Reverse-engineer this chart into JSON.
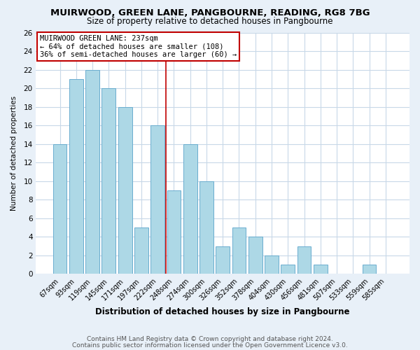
{
  "title": "MUIRWOOD, GREEN LANE, PANGBOURNE, READING, RG8 7BG",
  "subtitle": "Size of property relative to detached houses in Pangbourne",
  "xlabel": "Distribution of detached houses by size in Pangbourne",
  "ylabel": "Number of detached properties",
  "categories": [
    "67sqm",
    "93sqm",
    "119sqm",
    "145sqm",
    "171sqm",
    "197sqm",
    "222sqm",
    "248sqm",
    "274sqm",
    "300sqm",
    "326sqm",
    "352sqm",
    "378sqm",
    "404sqm",
    "430sqm",
    "456sqm",
    "481sqm",
    "507sqm",
    "533sqm",
    "559sqm",
    "585sqm"
  ],
  "values": [
    14,
    21,
    22,
    20,
    18,
    5,
    16,
    9,
    14,
    10,
    3,
    5,
    4,
    2,
    1,
    3,
    1,
    0,
    0,
    1,
    0
  ],
  "bar_color": "#add8e6",
  "bar_edge_color": "#6aadcf",
  "highlight_bar_index": 7,
  "highlight_line_color": "#c00000",
  "ylim": [
    0,
    26
  ],
  "yticks": [
    0,
    2,
    4,
    6,
    8,
    10,
    12,
    14,
    16,
    18,
    20,
    22,
    24,
    26
  ],
  "annotation_title": "MUIRWOOD GREEN LANE: 237sqm",
  "annotation_line1": "← 64% of detached houses are smaller (108)",
  "annotation_line2": "36% of semi-detached houses are larger (60) →",
  "annotation_box_edge": "#c00000",
  "bg_color": "#e8f0f8",
  "plot_bg_color": "#ffffff",
  "footer1": "Contains HM Land Registry data © Crown copyright and database right 2024.",
  "footer2": "Contains public sector information licensed under the Open Government Licence v3.0."
}
